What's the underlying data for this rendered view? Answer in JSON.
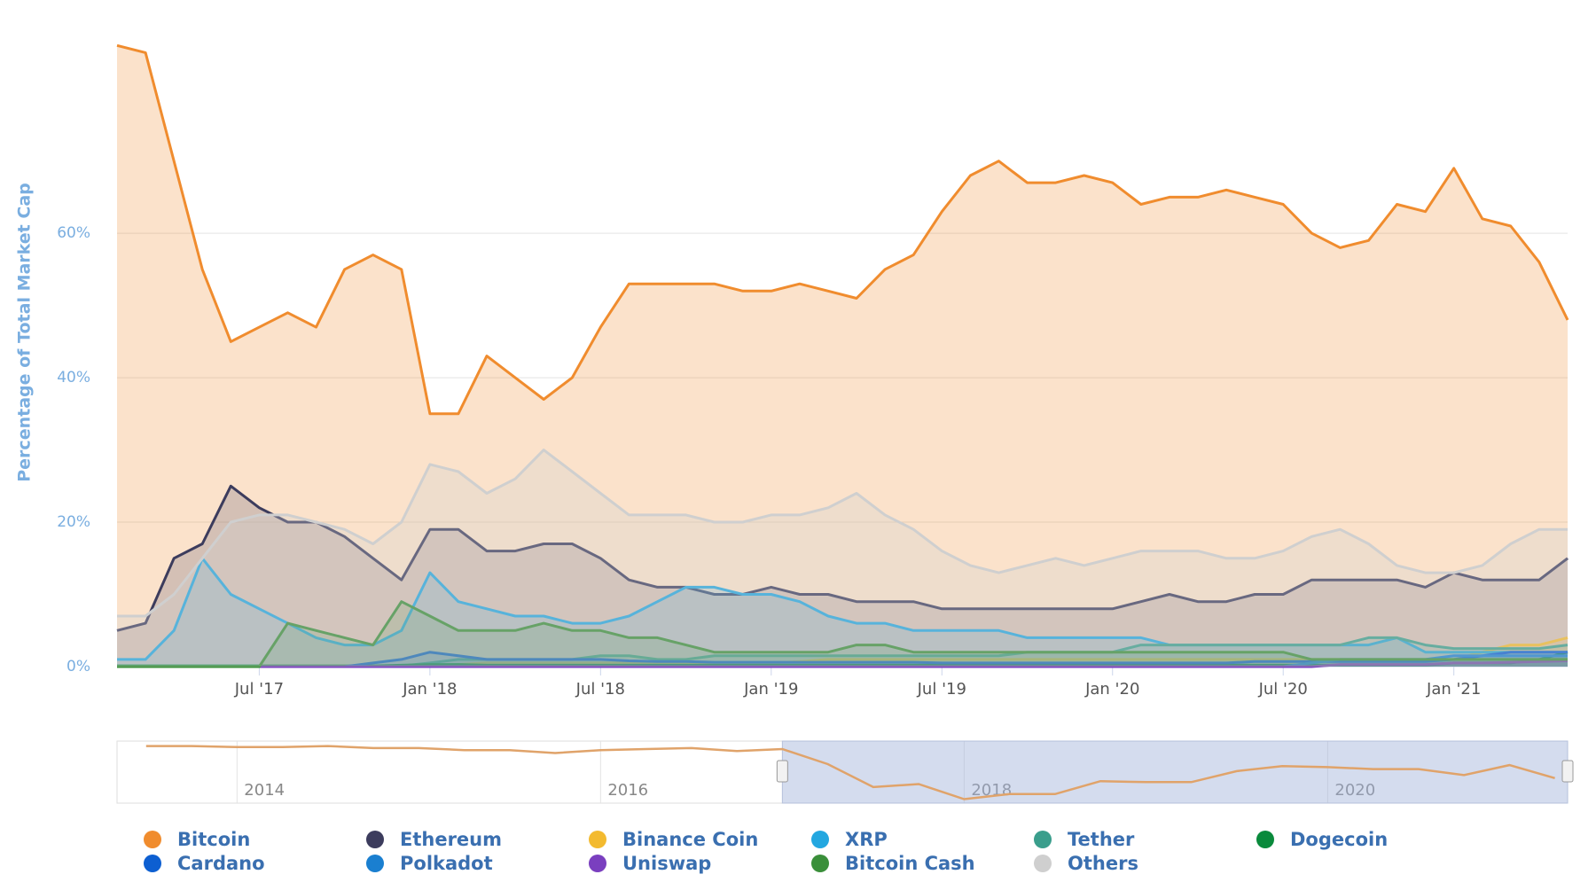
{
  "chart_data": [
    {
      "type": "area",
      "y_axis_title": "Percentage of Total Market Cap",
      "x": [
        "2017-02",
        "2017-03",
        "2017-04",
        "2017-05",
        "2017-06",
        "2017-07",
        "2017-08",
        "2017-09",
        "2017-10",
        "2017-11",
        "2017-12",
        "2018-01",
        "2018-02",
        "2018-03",
        "2018-04",
        "2018-05",
        "2018-06",
        "2018-07",
        "2018-08",
        "2018-09",
        "2018-10",
        "2018-11",
        "2018-12",
        "2019-01",
        "2019-02",
        "2019-03",
        "2019-04",
        "2019-05",
        "2019-06",
        "2019-07",
        "2019-08",
        "2019-09",
        "2019-10",
        "2019-11",
        "2019-12",
        "2020-01",
        "2020-02",
        "2020-03",
        "2020-04",
        "2020-05",
        "2020-06",
        "2020-07",
        "2020-08",
        "2020-09",
        "2020-10",
        "2020-11",
        "2020-12",
        "2021-01",
        "2021-02",
        "2021-03",
        "2021-04",
        "2021-05"
      ],
      "xticks": [
        {
          "value": "2017-07",
          "label": "Jul '17"
        },
        {
          "value": "2018-01",
          "label": "Jan '18"
        },
        {
          "value": "2018-07",
          "label": "Jul '18"
        },
        {
          "value": "2019-01",
          "label": "Jan '19"
        },
        {
          "value": "2019-07",
          "label": "Jul '19"
        },
        {
          "value": "2020-01",
          "label": "Jan '20"
        },
        {
          "value": "2020-07",
          "label": "Jul '20"
        },
        {
          "value": "2021-01",
          "label": "Jan '21"
        }
      ],
      "ylim": [
        0,
        88
      ],
      "yticks": [
        {
          "value": 0,
          "label": "0%"
        },
        {
          "value": 20,
          "label": "20%"
        },
        {
          "value": 40,
          "label": "40%"
        },
        {
          "value": 60,
          "label": "60%"
        }
      ],
      "grid": true,
      "series": [
        {
          "name": "Bitcoin",
          "color": "#f08c2e",
          "fill_opacity": 0.25,
          "values": [
            86,
            85,
            70,
            55,
            45,
            47,
            49,
            47,
            55,
            57,
            55,
            35,
            35,
            43,
            40,
            37,
            40,
            47,
            53,
            53,
            53,
            53,
            52,
            52,
            53,
            52,
            51,
            55,
            57,
            63,
            68,
            70,
            67,
            67,
            68,
            67,
            64,
            65,
            65,
            66,
            65,
            64,
            60,
            58,
            59,
            64,
            63,
            69,
            62,
            61,
            56,
            48
          ]
        },
        {
          "name": "Ethereum",
          "color": "#3c3c5d",
          "fill_opacity": 0.2,
          "values": [
            5,
            6,
            15,
            17,
            25,
            22,
            20,
            20,
            18,
            15,
            12,
            19,
            19,
            16,
            16,
            17,
            17,
            15,
            12,
            11,
            11,
            10,
            10,
            11,
            10,
            10,
            9,
            9,
            9,
            8,
            8,
            8,
            8,
            8,
            8,
            8,
            9,
            10,
            9,
            9,
            10,
            10,
            12,
            12,
            12,
            12,
            11,
            13,
            12,
            12,
            12,
            15
          ]
        },
        {
          "name": "Binance Coin",
          "color": "#f3ba2f",
          "fill_opacity": 0.2,
          "values": [
            0,
            0,
            0,
            0,
            0,
            0,
            0,
            0,
            0,
            0,
            0,
            0.1,
            0.3,
            0.5,
            0.5,
            0.5,
            0.5,
            0.5,
            0.5,
            0.5,
            0.5,
            0.5,
            0.5,
            0.5,
            0.7,
            1,
            1,
            1,
            1,
            1,
            1,
            1,
            1,
            1,
            1,
            1,
            1,
            1,
            1,
            1,
            1,
            1,
            1,
            1,
            1,
            1,
            1,
            1,
            2,
            3,
            3,
            4
          ]
        },
        {
          "name": "XRP",
          "color": "#23a7e0",
          "fill_opacity": 0.2,
          "values": [
            1,
            1,
            5,
            15,
            10,
            8,
            6,
            4,
            3,
            3,
            5,
            13,
            9,
            8,
            7,
            7,
            6,
            6,
            7,
            9,
            11,
            11,
            10,
            10,
            9,
            7,
            6,
            6,
            5,
            5,
            5,
            5,
            4,
            4,
            4,
            4,
            4,
            3,
            3,
            3,
            3,
            3,
            3,
            3,
            3,
            4,
            2,
            2,
            2,
            2,
            2,
            2
          ]
        },
        {
          "name": "Tether",
          "color": "#3a9e8c",
          "fill_opacity": 0.2,
          "values": [
            0.1,
            0.1,
            0.1,
            0.1,
            0.1,
            0.1,
            0.1,
            0.1,
            0.1,
            0.1,
            0.1,
            0.5,
            1,
            1,
            1,
            1,
            1,
            1.5,
            1.5,
            1,
            1,
            1.5,
            1.5,
            1.5,
            1.5,
            1.5,
            1.5,
            1.5,
            1.5,
            1.5,
            1.5,
            1.5,
            2,
            2,
            2,
            2,
            3,
            3,
            3,
            3,
            3,
            3,
            3,
            3,
            4,
            4,
            3,
            2.5,
            2.5,
            2.5,
            2.5,
            3
          ]
        },
        {
          "name": "Dogecoin",
          "color": "#0a8a3c",
          "fill_opacity": 0.2,
          "values": [
            0.1,
            0.1,
            0.1,
            0.1,
            0.1,
            0.1,
            0.1,
            0.1,
            0.1,
            0.1,
            0.2,
            0.3,
            0.3,
            0.2,
            0.2,
            0.2,
            0.2,
            0.2,
            0.2,
            0.2,
            0.2,
            0.2,
            0.2,
            0.2,
            0.2,
            0.2,
            0.2,
            0.2,
            0.2,
            0.2,
            0.2,
            0.2,
            0.2,
            0.2,
            0.2,
            0.2,
            0.2,
            0.2,
            0.2,
            0.2,
            0.2,
            0.2,
            0.2,
            0.2,
            0.2,
            0.2,
            0.2,
            0.5,
            0.5,
            0.5,
            1,
            2
          ]
        },
        {
          "name": "Cardano",
          "color": "#0d5fd1",
          "fill_opacity": 0.2,
          "values": [
            0,
            0,
            0,
            0,
            0,
            0,
            0,
            0,
            0,
            0.5,
            1,
            2,
            1.5,
            1,
            1,
            1,
            1,
            1,
            0.8,
            0.7,
            0.7,
            0.6,
            0.6,
            0.6,
            0.6,
            0.6,
            0.6,
            0.6,
            0.6,
            0.5,
            0.5,
            0.5,
            0.5,
            0.5,
            0.5,
            0.5,
            0.5,
            0.5,
            0.5,
            0.5,
            0.7,
            0.7,
            0.7,
            0.7,
            0.7,
            0.7,
            0.7,
            1,
            1.5,
            2,
            2,
            2
          ]
        },
        {
          "name": "Polkadot",
          "color": "#1a7fd0",
          "fill_opacity": 0.2,
          "values": [
            0,
            0,
            0,
            0,
            0,
            0,
            0,
            0,
            0,
            0,
            0,
            0,
            0,
            0,
            0,
            0,
            0,
            0,
            0,
            0,
            0,
            0,
            0,
            0,
            0,
            0,
            0,
            0,
            0,
            0,
            0,
            0,
            0,
            0,
            0,
            0,
            0,
            0,
            0,
            0,
            0,
            0,
            0.5,
            1,
            1,
            1,
            1,
            1.5,
            1.5,
            1.5,
            1.5,
            1.5
          ]
        },
        {
          "name": "Uniswap",
          "color": "#7a3fbf",
          "fill_opacity": 0.2,
          "values": [
            0,
            0,
            0,
            0,
            0,
            0,
            0,
            0,
            0,
            0,
            0,
            0,
            0,
            0,
            0,
            0,
            0,
            0,
            0,
            0,
            0,
            0,
            0,
            0,
            0,
            0,
            0,
            0,
            0,
            0,
            0,
            0,
            0,
            0,
            0,
            0,
            0,
            0,
            0,
            0,
            0,
            0,
            0,
            0.3,
            0.3,
            0.3,
            0.3,
            0.5,
            0.5,
            0.6,
            0.7,
            0.8
          ]
        },
        {
          "name": "Bitcoin Cash",
          "color": "#3a8f3a",
          "fill_opacity": 0.2,
          "values": [
            0,
            0,
            0,
            0,
            0,
            0,
            6,
            5,
            4,
            3,
            9,
            7,
            5,
            5,
            5,
            6,
            5,
            5,
            4,
            4,
            3,
            2,
            2,
            2,
            2,
            2,
            3,
            3,
            2,
            2,
            2,
            2,
            2,
            2,
            2,
            2,
            2,
            2,
            2,
            2,
            2,
            2,
            1,
            1,
            1,
            1,
            1,
            1,
            1,
            1,
            1,
            1
          ]
        },
        {
          "name": "Others",
          "color": "#cfcfcf",
          "fill_opacity": 0.3,
          "values": [
            7,
            7,
            10,
            15,
            20,
            21,
            21,
            20,
            19,
            17,
            20,
            28,
            27,
            24,
            26,
            30,
            27,
            24,
            21,
            21,
            21,
            20,
            20,
            21,
            21,
            22,
            24,
            21,
            19,
            16,
            14,
            13,
            14,
            15,
            14,
            15,
            16,
            16,
            16,
            15,
            15,
            16,
            18,
            19,
            17,
            14,
            13,
            13,
            14,
            17,
            19,
            19
          ]
        }
      ]
    },
    {
      "type": "navigator",
      "x": [
        2013.5,
        2013.75,
        2014,
        2014.25,
        2014.5,
        2014.75,
        2015,
        2015.25,
        2015.5,
        2015.75,
        2016,
        2016.25,
        2016.5,
        2016.75,
        2017,
        2017.25,
        2017.5,
        2017.75,
        2018,
        2018.25,
        2018.5,
        2018.75,
        2019,
        2019.25,
        2019.5,
        2019.75,
        2020,
        2020.25,
        2020.5,
        2020.75,
        2021,
        2021.25
      ],
      "values": [
        88,
        88,
        87,
        87,
        88,
        86,
        86,
        84,
        84,
        81,
        84,
        85,
        86,
        83,
        85,
        70,
        47,
        50,
        35,
        40,
        40,
        53,
        52,
        52,
        63,
        68,
        67,
        65,
        65,
        59,
        69,
        56
      ],
      "color": "#e0a36a",
      "xlim": [
        2013.34,
        2021.32
      ],
      "ylim": [
        31,
        93
      ],
      "xticks": [
        2014,
        2016,
        2018,
        2020
      ],
      "selection": [
        2017.0,
        2021.32
      ]
    }
  ]
}
